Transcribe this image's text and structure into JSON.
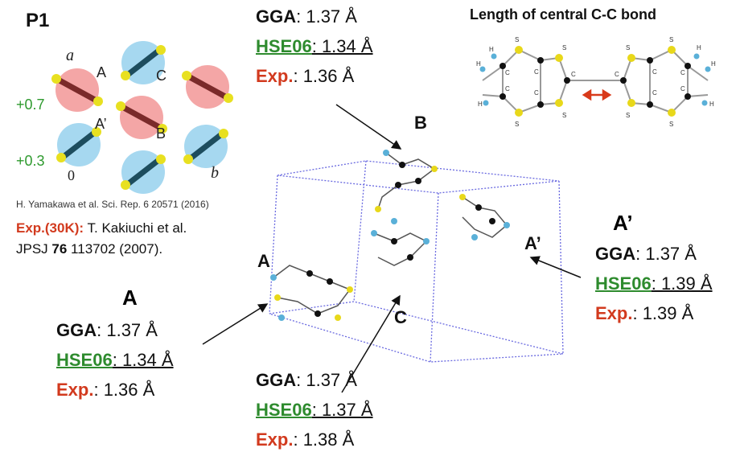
{
  "header": {
    "title": "P1"
  },
  "lattice": {
    "labels": [
      "a",
      "A",
      "C",
      "A’",
      "B",
      "0",
      "b"
    ],
    "charges": [
      "+0.7",
      "+0.3"
    ]
  },
  "citation": "H. Yamakawa et al. Sci. Rep. 6 20571 (2016)",
  "experiment": {
    "label": "Exp.(30K):",
    "authors": " T. Kakiuchi et al.",
    "journal": "JPSJ ",
    "volume": "76",
    "pages": " 113702 (2007)."
  },
  "molecule": {
    "title": "Length of central C-C bond",
    "atoms": [
      "S",
      "S",
      "S",
      "S",
      "S",
      "S",
      "S",
      "S",
      "C",
      "C",
      "C",
      "C",
      "C",
      "C",
      "C",
      "C",
      "C",
      "C",
      "H",
      "H",
      "H",
      "H",
      "H",
      "H"
    ]
  },
  "crystal": {
    "labels": [
      "B",
      "A",
      "C",
      "A’"
    ]
  },
  "bond_lengths": [
    {
      "rows": [
        {
          "method": "GGA",
          "value": ": 1.37 Å"
        },
        {
          "method": "HSE06",
          "value": ": 1.34 Å"
        },
        {
          "method": "Exp.",
          "value": ": 1.36 Å"
        }
      ]
    },
    {
      "header": "A",
      "rows": [
        {
          "method": "GGA",
          "value": ": 1.37 Å"
        },
        {
          "method": "HSE06",
          "value": ": 1.34 Å"
        },
        {
          "method": "Exp.",
          "value": ": 1.36 Å"
        }
      ]
    },
    {
      "rows": [
        {
          "method": "GGA",
          "value": ": 1.37 Å"
        },
        {
          "method": "HSE06",
          "value": ": 1.37 Å"
        },
        {
          "method": "Exp.",
          "value": ": 1.38 Å"
        }
      ]
    },
    {
      "header": "A’",
      "rows": [
        {
          "method": "GGA",
          "value": ": 1.37 Å"
        },
        {
          "method": "HSE06",
          "value": ": 1.39 Å"
        },
        {
          "method": "Exp.",
          "value": ": 1.39 Å"
        }
      ]
    }
  ]
}
